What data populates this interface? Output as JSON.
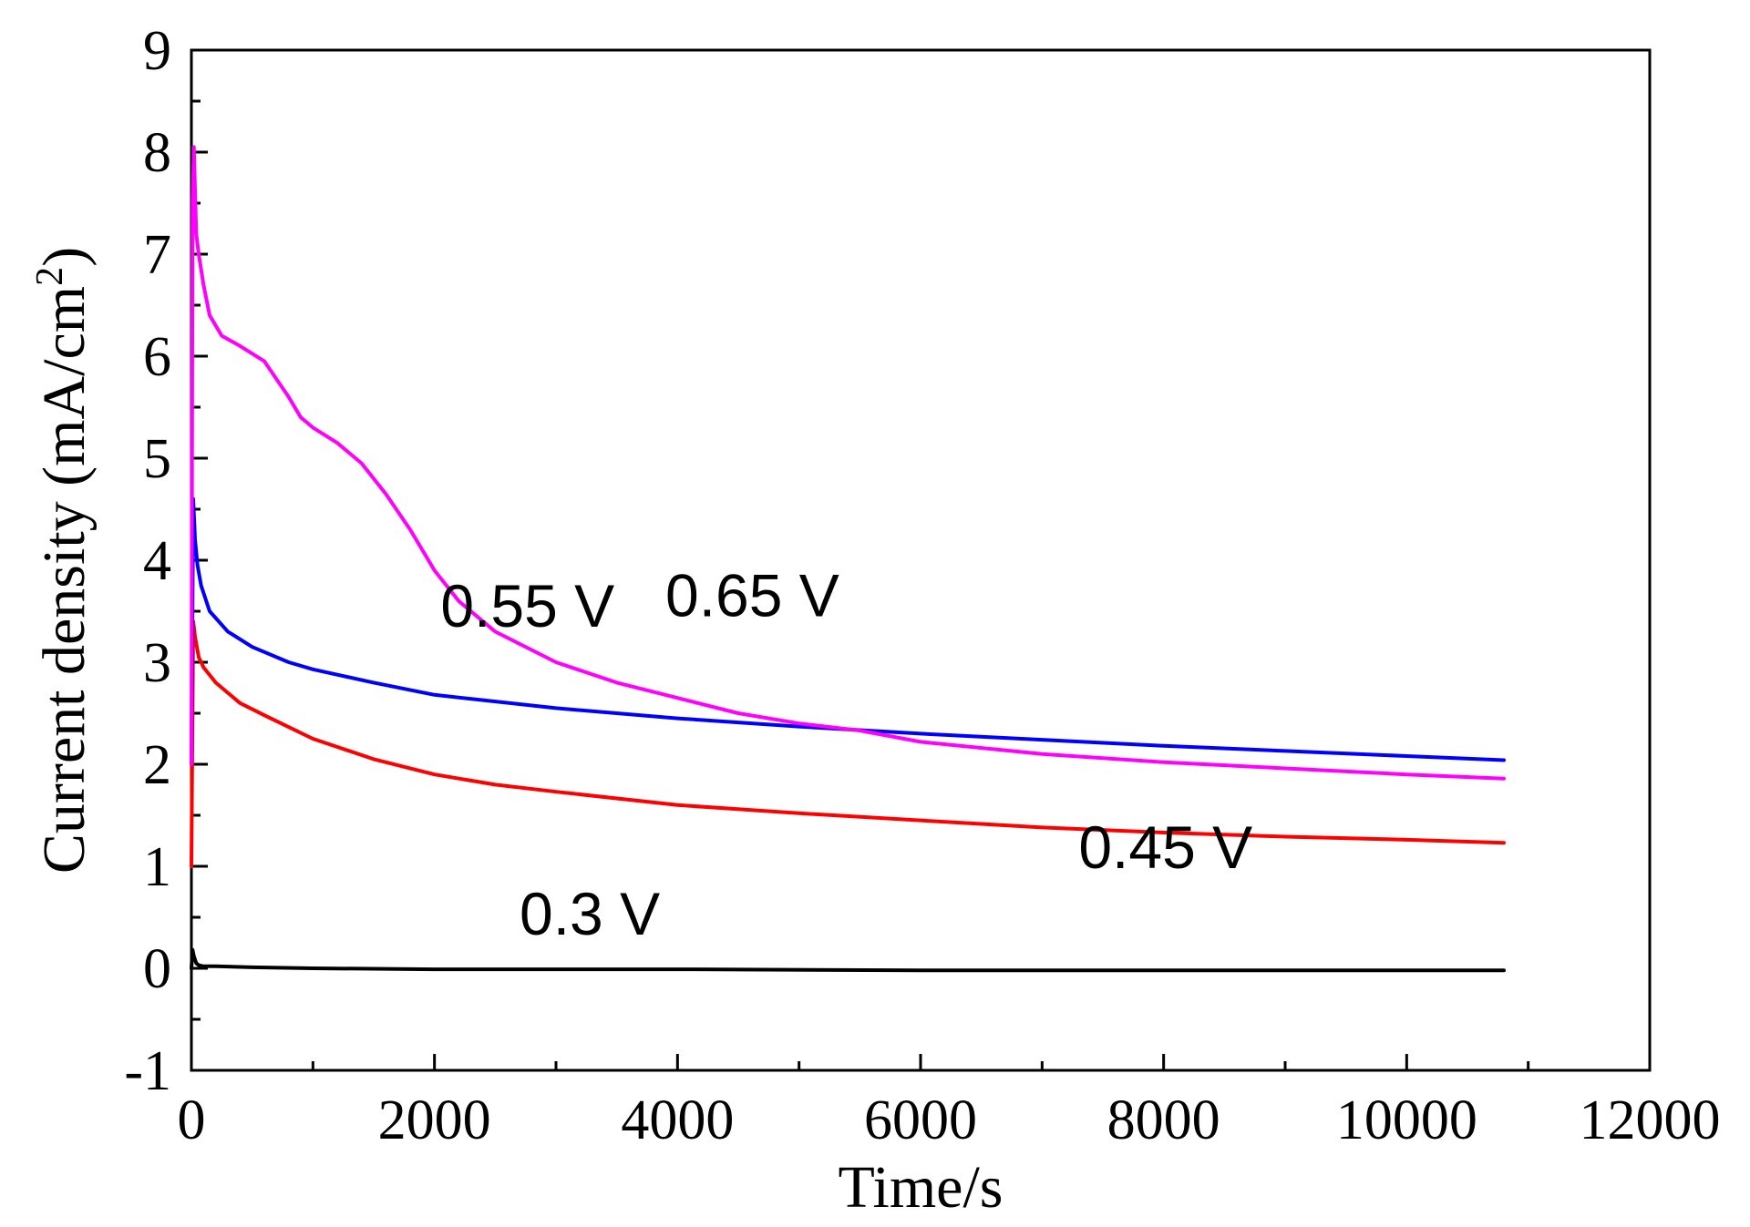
{
  "chart_data": {
    "type": "line",
    "title": "",
    "xlabel": "Time/s",
    "ylabel_main": "Current density (mA/cm",
    "ylabel_sup": "2",
    "ylabel_close": ")",
    "xlim": [
      0,
      12000
    ],
    "ylim": [
      -1,
      9
    ],
    "x_ticks": [
      0,
      2000,
      4000,
      6000,
      8000,
      10000,
      12000
    ],
    "x_tick_labels": [
      "0",
      "2000",
      "4000",
      "6000",
      "8000",
      "10000",
      "12000"
    ],
    "x_minor_ticks": [
      1000,
      3000,
      5000,
      7000,
      9000,
      11000
    ],
    "y_ticks": [
      -1,
      0,
      1,
      2,
      3,
      4,
      5,
      6,
      7,
      8,
      9
    ],
    "y_tick_labels": [
      "-1",
      "0",
      "1",
      "2",
      "3",
      "4",
      "5",
      "6",
      "7",
      "8",
      "9"
    ],
    "y_minor_ticks": [
      -0.5,
      0.5,
      1.5,
      2.5,
      3.5,
      4.5,
      5.5,
      6.5,
      7.5,
      8.5
    ],
    "grid": false,
    "series": [
      {
        "name": "0.3 V",
        "color": "#000000",
        "x": [
          0,
          10,
          20,
          40,
          60,
          100,
          200,
          500,
          1000,
          2000,
          4000,
          6000,
          8000,
          10000,
          10800
        ],
        "y": [
          0.0,
          0.18,
          0.12,
          0.05,
          0.03,
          0.02,
          0.02,
          0.01,
          0.0,
          -0.01,
          -0.01,
          -0.02,
          -0.02,
          -0.02,
          -0.02
        ]
      },
      {
        "name": "0.45 V",
        "color": "#ff0000",
        "x": [
          0,
          15,
          30,
          60,
          100,
          200,
          400,
          600,
          1000,
          1500,
          2000,
          2500,
          3000,
          4000,
          5000,
          6000,
          7000,
          8000,
          9000,
          10000,
          10800
        ],
        "y": [
          1.0,
          3.4,
          3.25,
          3.05,
          2.95,
          2.8,
          2.6,
          2.48,
          2.25,
          2.05,
          1.9,
          1.8,
          1.73,
          1.6,
          1.52,
          1.45,
          1.38,
          1.33,
          1.29,
          1.26,
          1.23
        ]
      },
      {
        "name": "0.55 V",
        "color": "#0000ff",
        "x": [
          0,
          15,
          30,
          50,
          80,
          150,
          300,
          500,
          800,
          1000,
          1500,
          2000,
          3000,
          4000,
          5000,
          6000,
          7000,
          8000,
          9000,
          10000,
          10800
        ],
        "y": [
          2.0,
          4.6,
          4.2,
          3.95,
          3.75,
          3.5,
          3.3,
          3.15,
          3.0,
          2.93,
          2.8,
          2.68,
          2.55,
          2.45,
          2.37,
          2.3,
          2.24,
          2.18,
          2.13,
          2.08,
          2.04
        ]
      },
      {
        "name": "0.65 V",
        "color": "#ff00ff",
        "x": [
          0,
          10,
          20,
          40,
          60,
          100,
          150,
          250,
          400,
          600,
          800,
          900,
          1000,
          1200,
          1400,
          1600,
          1800,
          2000,
          2200,
          2500,
          3000,
          3500,
          4000,
          4500,
          5000,
          5500,
          6000,
          7000,
          8000,
          9000,
          10000,
          10800
        ],
        "y": [
          2.0,
          7.5,
          8.05,
          7.2,
          7.0,
          6.7,
          6.4,
          6.2,
          6.1,
          5.95,
          5.6,
          5.4,
          5.3,
          5.15,
          4.95,
          4.65,
          4.3,
          3.9,
          3.6,
          3.3,
          3.0,
          2.8,
          2.65,
          2.5,
          2.4,
          2.33,
          2.22,
          2.1,
          2.02,
          1.96,
          1.9,
          1.86
        ]
      }
    ],
    "annotations": [
      {
        "text": "0.55 V",
        "x": 2050,
        "y": 3.35
      },
      {
        "text": "0.65 V",
        "x": 3900,
        "y": 3.45
      },
      {
        "text": "0.45 V",
        "x": 7300,
        "y": 0.98
      },
      {
        "text": "0.3 V",
        "x": 2700,
        "y": 0.33
      }
    ]
  }
}
